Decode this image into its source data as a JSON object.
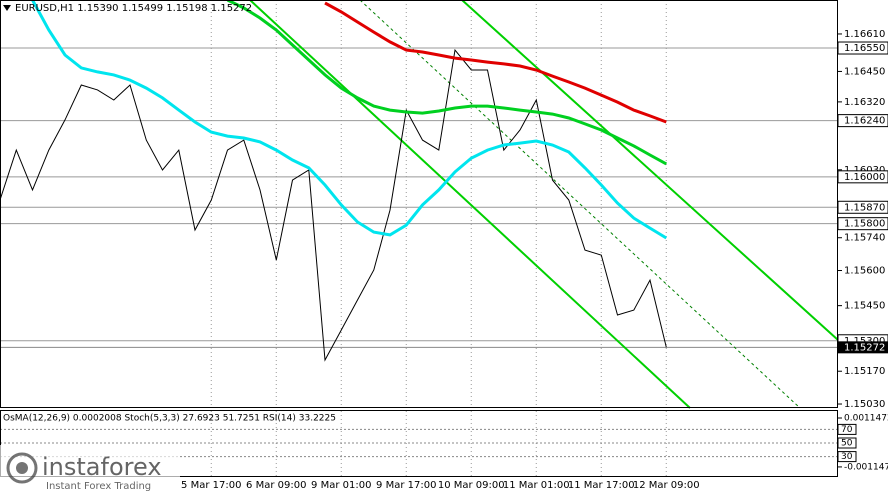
{
  "chart_data": [
    {
      "type": "line",
      "title": "EURUSD,H1  1.15390 1.15499 1.15198 1.15272",
      "categories": [
        null,
        null,
        null,
        null,
        null,
        null,
        null,
        null,
        null,
        null,
        null,
        null,
        null,
        "5 Mar 17:00",
        null,
        null,
        null,
        "6 Mar 09:00",
        null,
        null,
        null,
        "9 Mar 01:00",
        null,
        null,
        null,
        "9 Mar 17:00",
        null,
        null,
        null,
        "10 Mar 09:00",
        null,
        null,
        null,
        "11 Mar 01:00",
        null,
        null,
        null,
        "11 Mar 17:00",
        null,
        null,
        null,
        "12 Mar 09:00"
      ],
      "series": [
        {
          "color": "#000000",
          "values": [
            1.15901,
            1.16114,
            1.15944,
            1.16114,
            1.16243,
            1.16392,
            1.16371,
            1.16328,
            1.16392,
            1.16157,
            1.16029,
            1.16114,
            1.15773,
            1.15901,
            1.16114,
            1.16157,
            1.15944,
            1.15645,
            1.15986,
            1.16029,
            1.15218,
            1.15346,
            1.15474,
            1.15602,
            1.15858,
            1.16285,
            1.16157,
            1.16114,
            1.16541,
            1.16456,
            1.16456,
            1.16114,
            1.162,
            1.16328,
            1.15986,
            1.15901,
            1.15687,
            1.15666,
            1.1541,
            1.15431,
            1.15559,
            1.15272
          ]
        },
        {
          "color": "#e00000",
          "values": [
            null,
            null,
            null,
            null,
            null,
            null,
            null,
            null,
            null,
            null,
            null,
            null,
            null,
            null,
            null,
            null,
            null,
            null,
            null,
            null,
            1.16742,
            1.16704,
            1.16661,
            1.16618,
            1.16576,
            1.16541,
            1.16533,
            1.1652,
            1.16507,
            1.16499,
            1.1649,
            1.16482,
            1.16473,
            1.16456,
            1.1643,
            1.16405,
            1.16379,
            1.16349,
            1.16319,
            1.16285,
            1.1626,
            1.16234
          ]
        },
        {
          "color": "#00d020",
          "values": [
            null,
            null,
            null,
            null,
            null,
            null,
            null,
            null,
            null,
            null,
            null,
            null,
            null,
            null,
            1.16755,
            1.16721,
            1.16678,
            1.16627,
            1.16563,
            1.16499,
            1.16435,
            1.16379,
            1.16337,
            1.16302,
            1.16285,
            1.16277,
            1.16272,
            1.16281,
            1.16294,
            1.16302,
            1.16302,
            1.16294,
            1.16285,
            1.16277,
            1.16268,
            1.16251,
            1.16226,
            1.162,
            1.16166,
            1.16132,
            1.16093,
            1.16055
          ]
        },
        {
          "color": "#00e5ee",
          "values": [
            null,
            null,
            1.16755,
            1.16627,
            1.1652,
            1.16465,
            1.16448,
            1.16435,
            1.16413,
            1.16379,
            1.16337,
            1.16285,
            1.16234,
            1.16191,
            1.16174,
            1.16166,
            1.16149,
            1.16114,
            1.16072,
            1.16038,
            1.15965,
            1.1588,
            1.15807,
            1.15764,
            1.15752,
            1.15794,
            1.1588,
            1.15944,
            1.16021,
            1.1608,
            1.16114,
            1.16136,
            1.16144,
            1.16153,
            1.16136,
            1.16106,
            1.16038,
            1.15965,
            1.15888,
            1.15824,
            1.15781,
            1.15739
          ]
        }
      ],
      "ylim": [
        1.15013,
        1.16755
      ],
      "yticks": [
        {
          "value": 1.1661,
          "label": "1.16610"
        },
        {
          "value": 1.1645,
          "label": "1.16450"
        },
        {
          "value": 1.1632,
          "label": "1.16320"
        },
        {
          "value": 1.1603,
          "label": "1.16030"
        },
        {
          "value": 1.1574,
          "label": "1.15740"
        },
        {
          "value": 1.156,
          "label": "1.15600"
        },
        {
          "value": 1.1545,
          "label": "1.15450"
        },
        {
          "value": 1.1517,
          "label": "1.15170"
        },
        {
          "value": 1.1503,
          "label": "1.15030"
        }
      ],
      "levels": [
        {
          "value": 1.1655,
          "label": "1.16550"
        },
        {
          "value": 1.1624,
          "label": "1.16240"
        },
        {
          "value": 1.16,
          "label": "1.16000"
        },
        {
          "value": 1.1587,
          "label": "1.15870"
        },
        {
          "value": 1.158,
          "label": "1.15800"
        },
        {
          "value": 1.153,
          "label": "1.15300"
        }
      ],
      "current": {
        "value": 1.15272,
        "label": "1.15272"
      },
      "grid": true
    },
    {
      "type": "indicator",
      "title": "OsMA(12,26,9) 0.0002008  Stoch(5,3,3) 27.6923 51.7251  RSI(14) 33.2225",
      "ylim": [
        -0.00162,
        0.00157
      ],
      "yticks": [
        {
          "value": 0.0011472,
          "label": "0.00114720"
        },
        {
          "value": -0.0011472,
          "label": "-0.00114720"
        }
      ],
      "y2lim": [
        0,
        100
      ],
      "levels": [
        70,
        50,
        30
      ]
    }
  ],
  "watermark": {
    "brand": "instaforex",
    "tagline": "Instant Forex Trading"
  }
}
